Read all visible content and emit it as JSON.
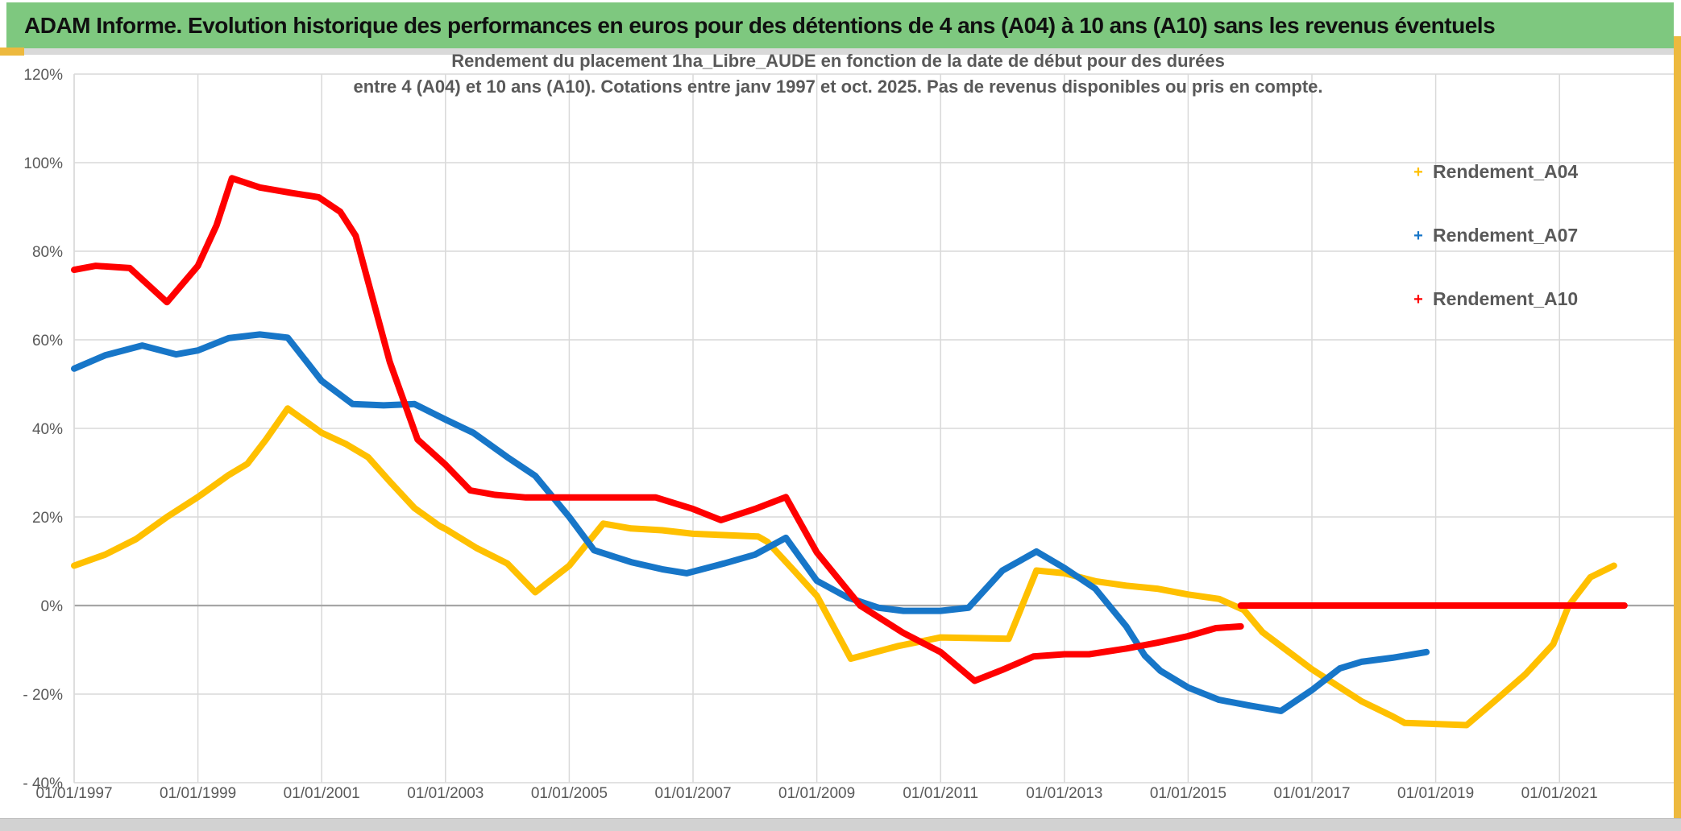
{
  "banner": {
    "title": "ADAM Informe. Evolution historique des performances en euros pour des détentions de 4 ans (A04) à 10 ans (A10) sans les revenus éventuels",
    "bg_color": "#7ec87f",
    "accent_gold": "#edb93e"
  },
  "chart": {
    "title_line1": "Rendement du placement 1ha_Libre_AUDE en fonction de la date de début pour des durées",
    "title_line2": "entre 4 (A04) et 10 ans (A10). Cotations entre janv 1997 et oct. 2025. Pas de revenus disponibles ou pris en compte.",
    "legend": [
      {
        "label": "Rendement_A04",
        "color": "#FFC000"
      },
      {
        "label": "Rendement_A07",
        "color": "#1776C8"
      },
      {
        "label": "Rendement_A10",
        "color": "#FF0000"
      }
    ]
  },
  "chart_data": {
    "type": "line",
    "marker_style": "plus-dense",
    "grid": true,
    "legend_position": "right-inside",
    "x_axis": {
      "range_years": [
        1997.0,
        2022.9
      ],
      "ticks": [
        {
          "label": "01/01/1997",
          "year": 1997
        },
        {
          "label": "01/01/1999",
          "year": 1999
        },
        {
          "label": "01/01/2001",
          "year": 2001
        },
        {
          "label": "01/01/2003",
          "year": 2003
        },
        {
          "label": "01/01/2005",
          "year": 2005
        },
        {
          "label": "01/01/2007",
          "year": 2007
        },
        {
          "label": "01/01/2009",
          "year": 2009
        },
        {
          "label": "01/01/2011",
          "year": 2011
        },
        {
          "label": "01/01/2013",
          "year": 2013
        },
        {
          "label": "01/01/2015",
          "year": 2015
        },
        {
          "label": "01/01/2017",
          "year": 2017
        },
        {
          "label": "01/01/2019",
          "year": 2019
        },
        {
          "label": "01/01/2021",
          "year": 2021
        }
      ]
    },
    "y_axis": {
      "unit": "%",
      "range": [
        -40,
        120
      ],
      "ticks": [
        {
          "label": "120%",
          "value": 120
        },
        {
          "label": "100%",
          "value": 100
        },
        {
          "label": "80%",
          "value": 80
        },
        {
          "label": "60%",
          "value": 60
        },
        {
          "label": "40%",
          "value": 40
        },
        {
          "label": "20%",
          "value": 20
        },
        {
          "label": "0%",
          "value": 0
        },
        {
          "label": "- 20%",
          "value": -20
        },
        {
          "label": "- 40%",
          "value": -40
        }
      ]
    },
    "series": [
      {
        "name": "Rendement_A04",
        "color": "#FFC000",
        "segments": [
          [
            [
              1997.0,
              9
            ],
            [
              1997.5,
              11.5
            ],
            [
              1998.0,
              15
            ],
            [
              1998.5,
              20
            ],
            [
              1999.0,
              24.5
            ],
            [
              1999.5,
              29.5
            ],
            [
              1999.8,
              32
            ],
            [
              2000.1,
              37.5
            ],
            [
              2000.45,
              44.5
            ],
            [
              2001.0,
              39
            ],
            [
              2001.4,
              36.4
            ],
            [
              2001.75,
              33.5
            ],
            [
              2002.1,
              28
            ],
            [
              2002.5,
              22
            ],
            [
              2002.9,
              18
            ],
            [
              2003.0,
              17.3
            ],
            [
              2003.5,
              13
            ],
            [
              2004.0,
              9.5
            ],
            [
              2004.45,
              3
            ],
            [
              2005.0,
              9
            ],
            [
              2005.55,
              18.5
            ],
            [
              2006.0,
              17.4
            ],
            [
              2006.5,
              17
            ],
            [
              2007.0,
              16.2
            ],
            [
              2007.5,
              15.9
            ],
            [
              2008.05,
              15.6
            ],
            [
              2008.2,
              14.4
            ],
            [
              2008.65,
              7.6
            ],
            [
              2009.0,
              2.2
            ],
            [
              2009.55,
              -12
            ],
            [
              2010.3,
              -9.2
            ],
            [
              2011.0,
              -7.2
            ],
            [
              2012.1,
              -7.5
            ],
            [
              2012.55,
              7.9
            ],
            [
              2013.0,
              7.3
            ],
            [
              2013.5,
              5.5
            ],
            [
              2014.0,
              4.5
            ],
            [
              2014.5,
              3.8
            ],
            [
              2015.0,
              2.5
            ],
            [
              2015.5,
              1.5
            ],
            [
              2015.9,
              -1
            ],
            [
              2016.2,
              -6
            ],
            [
              2017.0,
              -14.4
            ],
            [
              2017.4,
              -18
            ],
            [
              2017.8,
              -21.6
            ],
            [
              2018.3,
              -25
            ],
            [
              2018.5,
              -26.5
            ],
            [
              2019.5,
              -27
            ],
            [
              2020.0,
              -21
            ],
            [
              2020.45,
              -15.5
            ],
            [
              2020.9,
              -8.7
            ],
            [
              2021.15,
              0
            ],
            [
              2021.5,
              6.4
            ],
            [
              2021.88,
              9
            ]
          ]
        ]
      },
      {
        "name": "Rendement_A07",
        "color": "#1776C8",
        "segments": [
          [
            [
              1997.0,
              53.5
            ],
            [
              1997.5,
              56.5
            ],
            [
              1998.1,
              58.7
            ],
            [
              1998.65,
              56.7
            ],
            [
              1999.0,
              57.6
            ],
            [
              1999.5,
              60.4
            ],
            [
              2000.0,
              61.2
            ],
            [
              2000.45,
              60.5
            ],
            [
              2001.0,
              50.7
            ],
            [
              2001.5,
              45.5
            ],
            [
              2002.0,
              45.2
            ],
            [
              2002.5,
              45.5
            ],
            [
              2003.0,
              42
            ],
            [
              2003.45,
              39
            ],
            [
              2004.0,
              33.5
            ],
            [
              2004.45,
              29.3
            ],
            [
              2005.0,
              20
            ],
            [
              2005.4,
              12.5
            ],
            [
              2006.0,
              9.8
            ],
            [
              2006.5,
              8.2
            ],
            [
              2006.9,
              7.3
            ],
            [
              2007.5,
              9.5
            ],
            [
              2008.0,
              11.5
            ],
            [
              2008.5,
              15.3
            ],
            [
              2009.0,
              5.6
            ],
            [
              2009.5,
              1.8
            ],
            [
              2010.0,
              -0.5
            ],
            [
              2010.4,
              -1.2
            ],
            [
              2011.0,
              -1.2
            ],
            [
              2011.45,
              -0.5
            ],
            [
              2012.0,
              7.9
            ],
            [
              2012.55,
              12.2
            ],
            [
              2013.0,
              8.5
            ],
            [
              2013.5,
              3.8
            ],
            [
              2014.0,
              -4.7
            ],
            [
              2014.3,
              -11.3
            ],
            [
              2014.55,
              -14.7
            ],
            [
              2015.0,
              -18.5
            ],
            [
              2015.5,
              -21.3
            ],
            [
              2016.0,
              -22.6
            ],
            [
              2016.5,
              -23.8
            ],
            [
              2017.0,
              -19.1
            ],
            [
              2017.45,
              -14.2
            ],
            [
              2017.8,
              -12.7
            ],
            [
              2018.3,
              -11.8
            ],
            [
              2018.85,
              -10.5
            ]
          ]
        ]
      },
      {
        "name": "Rendement_A10",
        "color": "#FF0000",
        "segments": [
          [
            [
              1997.0,
              75.8
            ],
            [
              1997.35,
              76.7
            ],
            [
              1997.9,
              76.2
            ],
            [
              1998.5,
              68.5
            ],
            [
              1999.0,
              76.7
            ],
            [
              1999.3,
              85.8
            ],
            [
              1999.55,
              96.5
            ],
            [
              2000.0,
              94.4
            ],
            [
              2000.5,
              93.2
            ],
            [
              2000.95,
              92.2
            ],
            [
              2001.3,
              88.9
            ],
            [
              2001.55,
              83.5
            ],
            [
              2002.1,
              55
            ],
            [
              2002.55,
              37.5
            ],
            [
              2003.0,
              31.8
            ],
            [
              2003.4,
              26
            ],
            [
              2003.8,
              25
            ],
            [
              2004.3,
              24.4
            ],
            [
              2006.4,
              24.4
            ],
            [
              2007.0,
              21.8
            ],
            [
              2007.45,
              19.3
            ],
            [
              2008.0,
              21.8
            ],
            [
              2008.5,
              24.5
            ],
            [
              2009.0,
              12
            ],
            [
              2009.7,
              0
            ],
            [
              2010.4,
              -6.2
            ],
            [
              2011.0,
              -10.5
            ],
            [
              2011.55,
              -17
            ],
            [
              2012.0,
              -14.5
            ],
            [
              2012.5,
              -11.5
            ],
            [
              2013.0,
              -11
            ],
            [
              2013.4,
              -11
            ],
            [
              2014.0,
              -9.7
            ],
            [
              2014.5,
              -8.4
            ],
            [
              2015.0,
              -6.9
            ],
            [
              2015.45,
              -5.1
            ],
            [
              2015.85,
              -4.7
            ]
          ],
          [
            [
              2015.85,
              0
            ],
            [
              2022.05,
              0
            ]
          ]
        ]
      }
    ]
  },
  "colors": {
    "grid": "#d9d9d9",
    "zero_line": "#a6a6a6",
    "axis_text": "#595959",
    "title_text": "#595959"
  }
}
